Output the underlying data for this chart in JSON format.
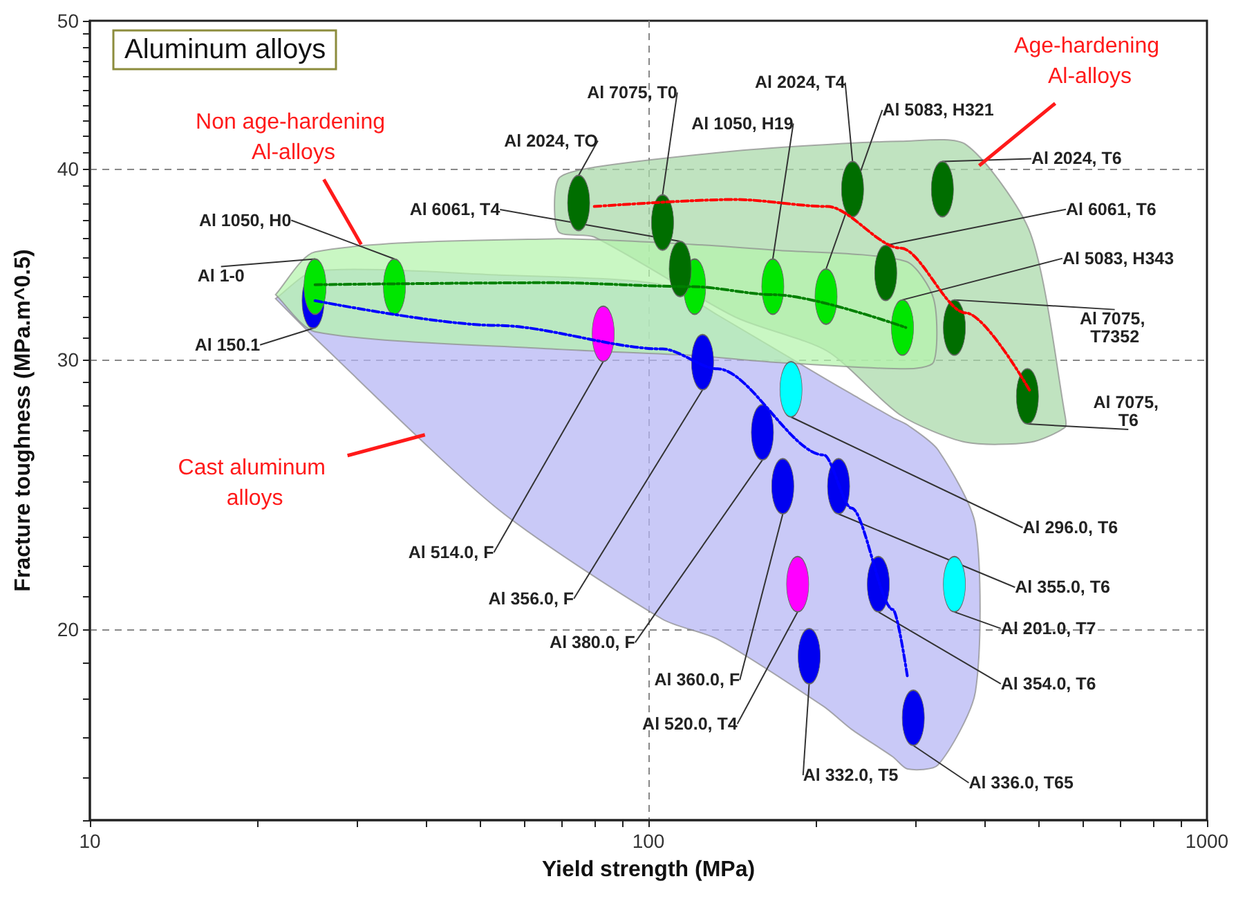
{
  "chart_data": {
    "type": "scatter",
    "title": "Aluminum alloys",
    "xlabel": "Yield strength (MPa)",
    "ylabel": "Fracture toughness (MPa.m^0.5)",
    "log": "xy",
    "grid": true,
    "xlim": [
      10,
      1000
    ],
    "ylim": [
      15,
      50
    ],
    "xticks": [
      10,
      {
        "value": 20,
        "label": null
      },
      {
        "value": 30,
        "label": null
      },
      {
        "value": 40,
        "label": null
      },
      {
        "value": 50,
        "label": null
      },
      {
        "value": 60,
        "label": null
      },
      {
        "value": 70,
        "label": null
      },
      {
        "value": 80,
        "label": null
      },
      {
        "value": 90,
        "label": null
      },
      100,
      {
        "value": 200,
        "label": null
      },
      {
        "value": 300,
        "label": null
      },
      {
        "value": 400,
        "label": null
      },
      {
        "value": 500,
        "label": null
      },
      {
        "value": 600,
        "label": null
      },
      {
        "value": 700,
        "label": null
      },
      {
        "value": 800,
        "label": null
      },
      {
        "value": 900,
        "label": null
      },
      1000
    ],
    "yticks": [
      {
        "value": 15,
        "label": null
      },
      {
        "value": 16,
        "label": null
      },
      {
        "value": 17,
        "label": null
      },
      {
        "value": 18,
        "label": null
      },
      {
        "value": 19,
        "label": null
      },
      20,
      {
        "value": 21,
        "label": null
      },
      {
        "value": 22,
        "label": null
      },
      {
        "value": 23,
        "label": null
      },
      {
        "value": 24,
        "label": null
      },
      {
        "value": 25,
        "label": null
      },
      {
        "value": 26,
        "label": null
      },
      {
        "value": 27,
        "label": null
      },
      {
        "value": 28,
        "label": null
      },
      {
        "value": 29,
        "label": null
      },
      30,
      {
        "value": 31,
        "label": null
      },
      {
        "value": 32,
        "label": null
      },
      {
        "value": 33,
        "label": null
      },
      {
        "value": 34,
        "label": null
      },
      {
        "value": 35,
        "label": null
      },
      {
        "value": 36,
        "label": null
      },
      {
        "value": 37,
        "label": null
      },
      {
        "value": 38,
        "label": null
      },
      {
        "value": 39,
        "label": null
      },
      40,
      {
        "value": 41,
        "label": null
      },
      {
        "value": 42,
        "label": null
      },
      {
        "value": 43,
        "label": null
      },
      {
        "value": 44,
        "label": null
      },
      {
        "value": 45,
        "label": null
      },
      {
        "value": 46,
        "label": null
      },
      {
        "value": 47,
        "label": null
      },
      {
        "value": 48,
        "label": null
      },
      {
        "value": 49,
        "label": null
      },
      50
    ],
    "series": [
      {
        "type": "line",
        "color": "#0000ff",
        "line_style": "dashed",
        "x": [
          21.5,
          25.3,
          53.5,
          106,
          133,
          206,
          231,
          274,
          291,
          330,
          385
        ],
        "values": [
          null,
          32.8,
          31.6,
          30.5,
          29.6,
          26.0,
          24.0,
          20.6,
          18.6,
          null,
          null
        ],
        "upper": [
          32.9,
          34.3,
          34.1,
          33.6,
          32.1,
          29.2,
          28.5,
          27.5,
          27.2,
          26.2,
          23.4
        ],
        "lower": [
          32.9,
          31.0,
          24.0,
          20.3,
          19.7,
          17.8,
          17.2,
          16.5,
          16.2,
          16.3,
          18.2
        ]
      },
      {
        "type": "line",
        "color": "#ff0000",
        "line_style": "dashed",
        "x": [
          69,
          80,
          143,
          209,
          283,
          370,
          483,
          557
        ],
        "values": [
          null,
          37.8,
          38.2,
          37.8,
          35.5,
          32.2,
          28.6,
          null
        ],
        "upper": [
          39.4,
          40.1,
          41.1,
          41.5,
          41.7,
          41.5,
          36.3,
          27.6
        ],
        "lower": [
          36.4,
          36.1,
          32.0,
          30.4,
          27.6,
          26.5,
          26.5,
          27.1
        ]
      },
      {
        "type": "line",
        "color": "#008000",
        "line_style": "dashed",
        "x": [
          21.5,
          25.3,
          67,
          120,
          167,
          289,
          324
        ],
        "values": [
          null,
          33.6,
          33.7,
          33.5,
          33.1,
          31.5,
          null
        ],
        "upper": [
          33.1,
          35.3,
          36.0,
          35.7,
          35.4,
          34.8,
          32.9
        ],
        "lower": [
          33.1,
          31.3,
          30.5,
          30.2,
          29.9,
          29.6,
          29.9
        ]
      },
      {
        "color": "#0000f0",
        "x": [
          25.1,
          125,
          160,
          174,
          219,
          194,
          258,
          298
        ],
        "values": [
          32.8,
          29.9,
          26.9,
          24.8,
          24.8,
          19.2,
          21.4,
          17.5
        ],
        "value_labels": [
          "Al 150.1",
          "Al 356.0, F",
          "Al 380.0, F",
          "Al 360.0, F",
          "Al 355.0, T6",
          "Al 332.0, T5",
          "Al 354.0, T6",
          "Al 336.0, T65"
        ]
      },
      {
        "color": "#00e600",
        "x": [
          25.3,
          35.1,
          121,
          167,
          208,
          285
        ],
        "values": [
          33.5,
          33.5,
          33.5,
          33.5,
          33.0,
          31.5
        ],
        "value_labels": [
          "Al 1-0",
          "Al 1050, H0",
          null,
          "Al 1050, H19",
          "Al 5083, H321",
          "Al 5083, H343"
        ]
      },
      {
        "color": "#006e00",
        "x": [
          75,
          106,
          114,
          232,
          336,
          266,
          353,
          477
        ],
        "values": [
          38.0,
          36.9,
          34.4,
          38.8,
          38.8,
          34.2,
          31.5,
          28.4
        ],
        "value_labels": [
          "Al 2024, TO",
          "Al 7075, T0",
          "Al 6061, T4",
          "Al 2024, T4",
          "Al 2024, T6",
          "Al 6061, T6",
          "Al 7075, T7352",
          "Al 7075, T6"
        ]
      },
      {
        "color": "#ff00ff",
        "x": [
          83,
          185
        ],
        "values": [
          31.2,
          21.4
        ],
        "value_labels": [
          "Al 514.0, F",
          "Al 520.0, T4"
        ]
      },
      {
        "color": "#00ffff",
        "x": [
          180,
          353
        ],
        "values": [
          28.7,
          21.4
        ],
        "value_labels": [
          "Al 296.0, T6",
          "Al 201.0, T7"
        ]
      }
    ],
    "annotations": [
      {
        "text": "Non age-hardening Al-alloys",
        "x": 30.6,
        "y": 35.7
      },
      {
        "text": "Age-hardening Al-alloys",
        "x": 391,
        "y": 40.2
      },
      {
        "text": "Cast aluminum alloys",
        "x": 39.8,
        "y": 26.8
      }
    ]
  }
}
